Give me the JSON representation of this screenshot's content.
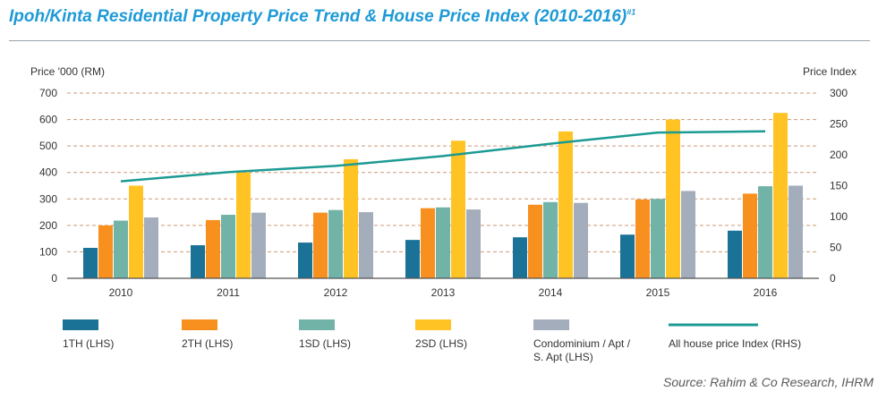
{
  "title": "Ipoh/Kinta Residential Property Price Trend & House Price Index (2010-2016)",
  "title_note": "#1",
  "source": "Source: Rahim & Co Research, IHRM",
  "chart_data": {
    "type": "bar",
    "categories": [
      "2010",
      "2011",
      "2012",
      "2013",
      "2014",
      "2015",
      "2016"
    ],
    "ylabel": "Price '000 (RM)",
    "y2label": "Price Index",
    "ylim": [
      0,
      700
    ],
    "y2lim": [
      0,
      300
    ],
    "yticks": [
      "0",
      "100",
      "200",
      "300",
      "400",
      "500",
      "600",
      "700"
    ],
    "y2ticks": [
      "0",
      "50",
      "100",
      "150",
      "200",
      "250",
      "300"
    ],
    "grid": "dashed horizontal",
    "series": [
      {
        "name": "1TH (LHS)",
        "color": "#1a7296",
        "values": [
          115,
          125,
          135,
          145,
          155,
          165,
          180
        ]
      },
      {
        "name": "2TH (LHS)",
        "color": "#f7901e",
        "values": [
          200,
          220,
          248,
          265,
          278,
          298,
          320
        ]
      },
      {
        "name": "1SD (LHS)",
        "color": "#72b3a8",
        "values": [
          218,
          240,
          258,
          268,
          288,
          300,
          348
        ]
      },
      {
        "name": "2SD (LHS)",
        "color": "#ffc423",
        "values": [
          350,
          400,
          450,
          520,
          555,
          600,
          625
        ]
      },
      {
        "name": "Condominium / Apt / S. Apt (LHS)",
        "label_lines": [
          "Condominium / Apt /",
          "S. Apt (LHS)"
        ],
        "color": "#a3adbb",
        "values": [
          230,
          248,
          250,
          260,
          285,
          330,
          350
        ]
      }
    ],
    "line_series": {
      "name": "All house price Index (RHS)",
      "color": "#1c9a94",
      "axis": "right",
      "values": [
        157,
        172,
        182,
        198,
        218,
        236,
        238
      ]
    },
    "legend": "bottom"
  }
}
